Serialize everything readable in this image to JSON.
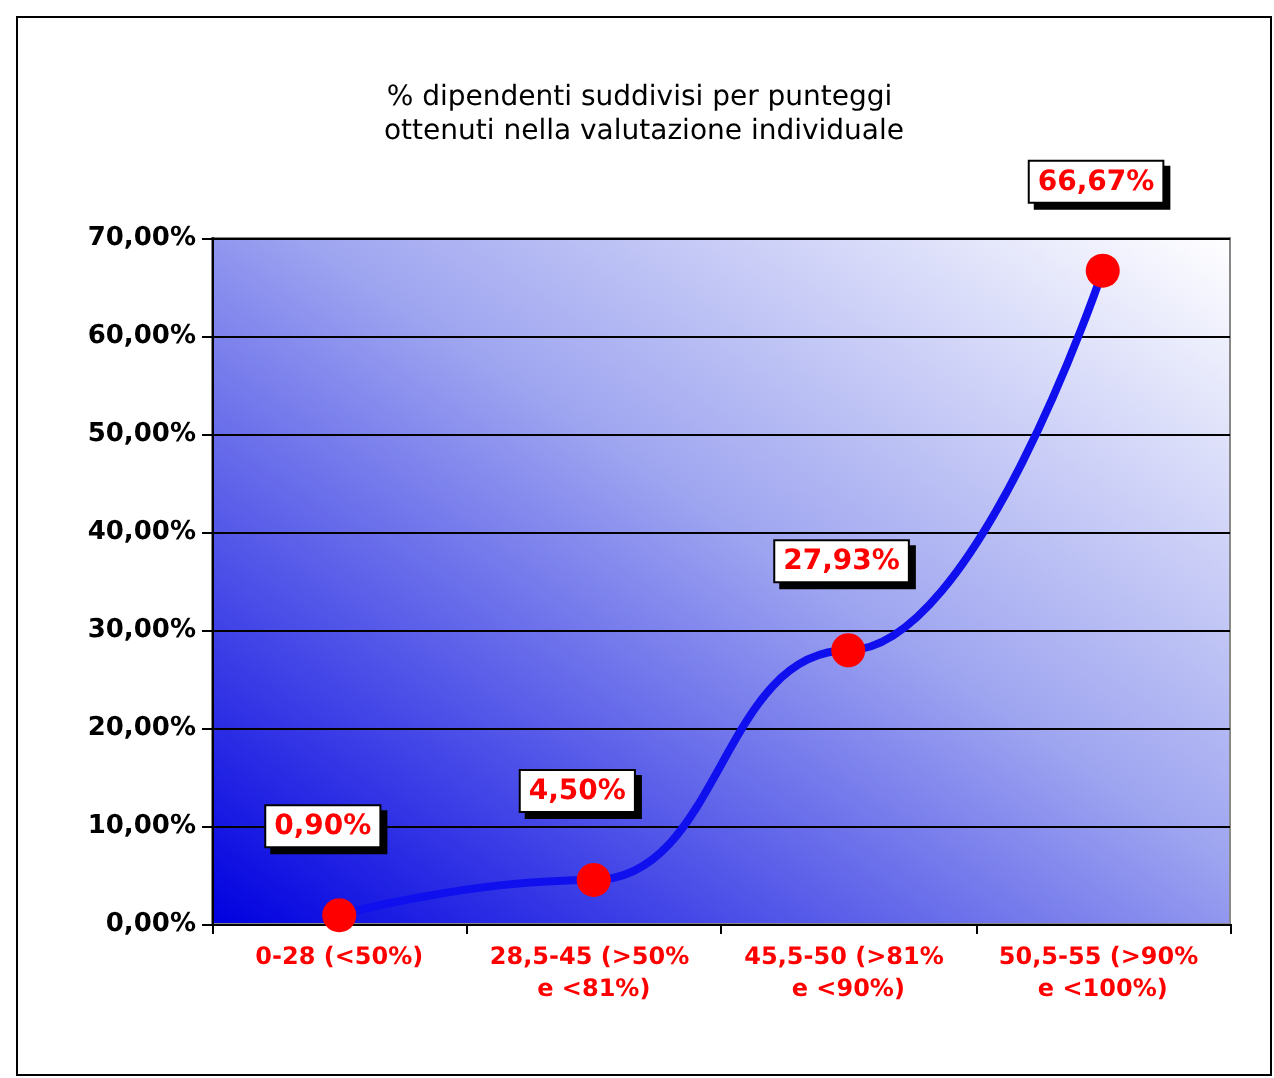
{
  "chart_data": {
    "type": "line",
    "title": "% dipendenti suddivisi per punteggi ottenuti nella valutazione individuale",
    "categories": [
      "0-28 (<50%)",
      "28,5-45 (>50% e <81%)",
      "45,5-50 (>81% e <90%)",
      "50,5-55 (>90% e <100%)"
    ],
    "series": [
      {
        "color": "#1010ee",
        "colors": [
          "#ff0000",
          "#ff0000",
          "#ff0000",
          "#ff0000"
        ],
        "values": [
          0.9,
          4.5,
          27.93,
          66.67
        ],
        "value_labels": [
          "0,90%",
          "4,50%",
          "27,93%",
          "66,67%"
        ]
      }
    ],
    "ylim": [
      0,
      70
    ],
    "yticks": [
      {
        "value": 0,
        "label": "0,00%"
      },
      {
        "value": 10,
        "label": "10,00%"
      },
      {
        "value": 20,
        "label": "20,00%"
      },
      {
        "value": 30,
        "label": "30,00%"
      },
      {
        "value": 40,
        "label": "40,00%"
      },
      {
        "value": 50,
        "label": "50,00%"
      },
      {
        "value": 60,
        "label": "60,00%"
      },
      {
        "value": 70,
        "label": "70,00%"
      }
    ],
    "grid": "y",
    "marker": "circle",
    "line_style": "solid"
  }
}
